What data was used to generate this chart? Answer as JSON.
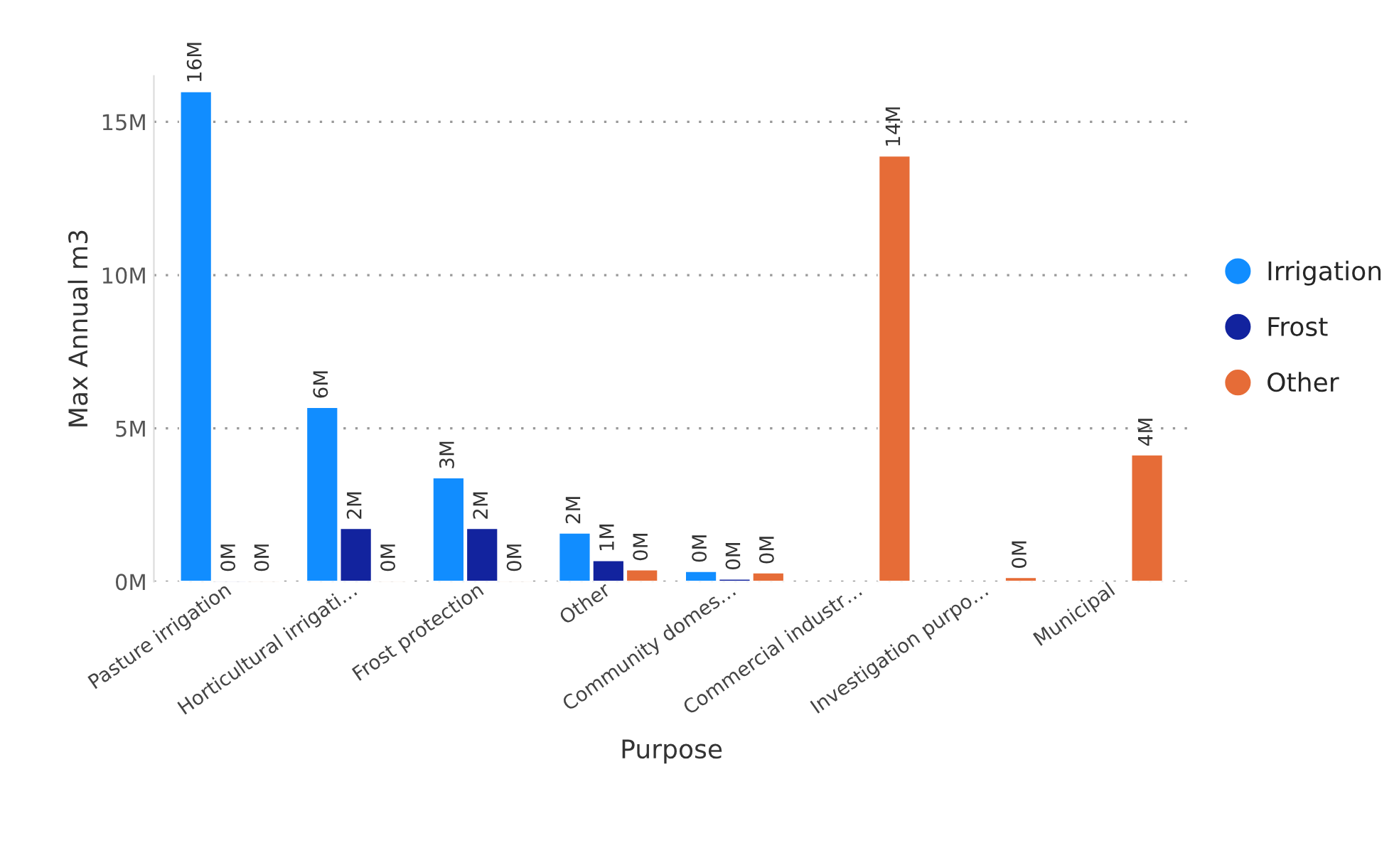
{
  "chart_data": {
    "type": "bar",
    "xlabel": "Purpose",
    "ylabel": "Max Annual m3",
    "categories": [
      "Pasture irrigation",
      "Horticultural irrigati…",
      "Frost protection",
      "Other",
      "Community domes…",
      "Commercial industr…",
      "Investigation purpo…",
      "Municipal"
    ],
    "series": [
      {
        "name": "Irrigation",
        "color": "#118dff",
        "values": [
          16000000,
          5700000,
          3400000,
          1600000,
          350000,
          null,
          null,
          null
        ],
        "value_labels": [
          "16M",
          "6M",
          "3M",
          "2M",
          "0M",
          null,
          null,
          null
        ]
      },
      {
        "name": "Frost",
        "color": "#12239e",
        "values": [
          50000,
          1750000,
          1750000,
          700000,
          100000,
          null,
          null,
          null
        ],
        "value_labels": [
          "0M",
          "2M",
          "2M",
          "1M",
          "0M",
          null,
          null,
          null
        ]
      },
      {
        "name": "Other",
        "color": "#e66c37",
        "values": [
          50000,
          50000,
          50000,
          400000,
          300000,
          13900000,
          150000,
          4150000
        ],
        "value_labels": [
          "0M",
          "0M",
          "0M",
          "0M",
          "0M",
          "14M",
          "0M",
          "4M"
        ]
      }
    ],
    "ylim": [
      0,
      16500000
    ],
    "yticks": [
      {
        "value": 0,
        "label": "0M"
      },
      {
        "value": 5000000,
        "label": "5M"
      },
      {
        "value": 10000000,
        "label": "10M"
      },
      {
        "value": 15000000,
        "label": "15M"
      }
    ],
    "grid": "y",
    "legend": "right",
    "marker": "circle"
  }
}
